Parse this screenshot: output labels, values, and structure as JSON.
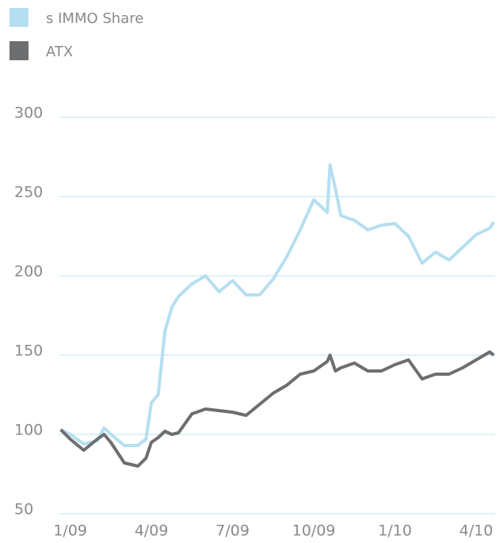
{
  "chart_data": {
    "type": "line",
    "x": [
      -0.35,
      0,
      0.5,
      1,
      1.25,
      1.5,
      2,
      2.5,
      2.8,
      3,
      3.25,
      3.5,
      3.75,
      4,
      4.5,
      5,
      5.5,
      6,
      6.5,
      7,
      7.5,
      8,
      8.5,
      9,
      9.5,
      9.6,
      9.8,
      10,
      10.5,
      11,
      11.5,
      12,
      12.5,
      13,
      13.5,
      14,
      14.5,
      15,
      15.5,
      15.65
    ],
    "series": [
      {
        "name": "s IMMO Share",
        "color": "#b5dff0",
        "values": [
          103,
          100,
          94,
          96,
          104,
          100,
          93,
          93,
          97,
          120,
          125,
          165,
          180,
          187,
          195,
          200,
          190,
          197,
          188,
          188,
          198,
          212,
          229,
          248,
          240,
          270,
          255,
          238,
          235,
          229,
          232,
          233,
          225,
          208,
          215,
          210,
          218,
          226,
          230,
          234
        ]
      },
      {
        "name": "ATX",
        "color": "#6d6e70",
        "values": [
          103,
          97,
          90,
          97,
          100,
          95,
          82,
          80,
          85,
          95,
          98,
          102,
          100,
          101,
          113,
          116,
          115,
          114,
          112,
          119,
          126,
          131,
          138,
          140,
          146,
          150,
          140,
          142,
          145,
          140,
          140,
          144,
          147,
          135,
          138,
          138,
          142,
          147,
          152,
          150
        ]
      }
    ],
    "xlim": [
      -0.4,
      15.7
    ],
    "xticks": [
      {
        "value": 0,
        "label": "1/09"
      },
      {
        "value": 3,
        "label": "4/09"
      },
      {
        "value": 6,
        "label": "7/09"
      },
      {
        "value": 9,
        "label": "10/09"
      },
      {
        "value": 12,
        "label": "1/10"
      },
      {
        "value": 15,
        "label": "4/10"
      }
    ],
    "ylim": [
      50,
      300
    ],
    "yticks": [
      50,
      100,
      150,
      200,
      250,
      300
    ],
    "grid": true
  }
}
